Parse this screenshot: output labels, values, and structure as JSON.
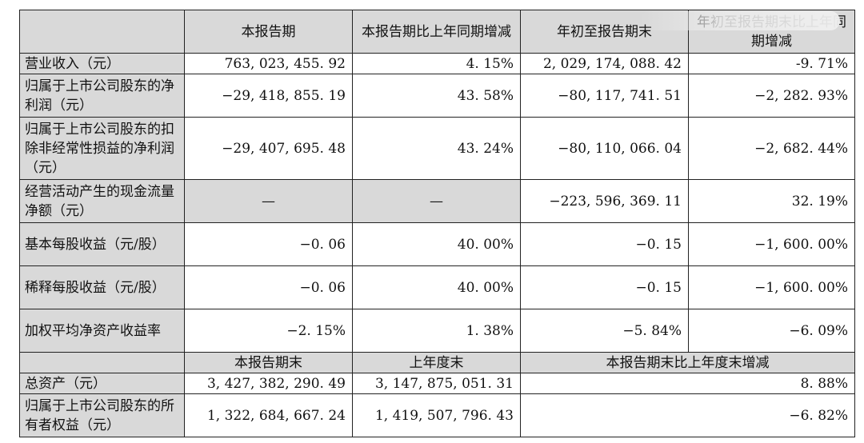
{
  "header": {
    "blank": "",
    "col1": "本报告期",
    "col2": "本报告期比上年同期增减",
    "col3": "年初至报告期末",
    "col4": "年初至报告期末比上年同期增减"
  },
  "rows": [
    {
      "label": "营业收入（元）",
      "v1": "763, 023, 455. 92",
      "v2": "4. 15%",
      "v3": "2, 029, 174, 088. 42",
      "v4": "-9. 71%"
    },
    {
      "label": "归属于上市公司股东的净利润（元）",
      "v1": "−29, 418, 855. 19",
      "v2": "43. 58%",
      "v3": "−80, 117, 741. 51",
      "v4": "−2, 282. 93%"
    },
    {
      "label": "归属于上市公司股东的扣除非经常性损益的净利润（元）",
      "v1": "−29, 407, 695. 48",
      "v2": "43. 24%",
      "v3": "−80, 110, 066. 04",
      "v4": "−2, 682. 44%"
    },
    {
      "label": "经营活动产生的现金流量净额（元）",
      "v1": "—",
      "v2": "—",
      "v3": "−223, 596, 369. 11",
      "v4": "32. 19%"
    },
    {
      "label": "基本每股收益（元/股）",
      "v1": "−0. 06",
      "v2": "40. 00%",
      "v3": "−0. 15",
      "v4": "−1, 600. 00%"
    },
    {
      "label": "稀释每股收益（元/股）",
      "v1": "−0. 06",
      "v2": "40. 00%",
      "v3": "−0. 15",
      "v4": "−1, 600. 00%"
    },
    {
      "label": "加权平均净资产收益率",
      "v1": "−2. 15%",
      "v2": "1. 38%",
      "v3": "−5. 84%",
      "v4": "−6. 09%"
    }
  ],
  "subheader": {
    "blank": "",
    "col1": "本报告期末",
    "col2": "上年度末",
    "col34": "本报告期末比上年度末增减"
  },
  "rows2": [
    {
      "label": "总资产（元）",
      "v1": "3, 427, 382, 290. 49",
      "v2": "3, 147, 875, 051. 31",
      "v3": "8. 88%"
    },
    {
      "label": "归属于上市公司股东的所有者权益（元）",
      "v1": "1, 322, 684, 667. 24",
      "v2": "1, 419, 507, 796. 43",
      "v3": "−6. 82%"
    }
  ]
}
